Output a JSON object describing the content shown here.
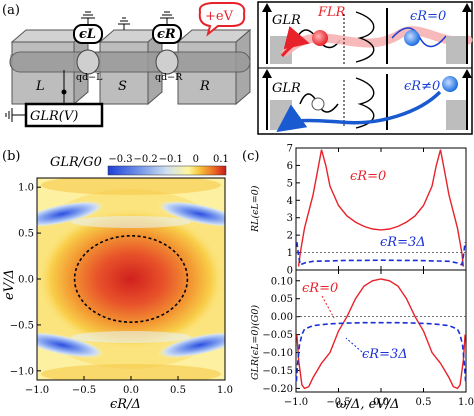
{
  "panel_labels": {
    "a": "(a)",
    "b": "(b)",
    "c": "(c)"
  },
  "panel_a": {
    "leads": [
      "L",
      "S",
      "R"
    ],
    "dots": {
      "left_energy": "ϵL",
      "right_energy": "ϵR",
      "left_label": "qd−L",
      "right_label": "qd−R"
    },
    "bias": "+eV",
    "meter": "GLR(V)",
    "cartoon_top": {
      "label": "GLR",
      "force": "FLR",
      "condition": "ϵR=0"
    },
    "cartoon_bottom": {
      "label": "GLR",
      "condition": "ϵR≠0"
    }
  },
  "chart_data": [
    {
      "type": "heatmap",
      "title": "GLR/G0",
      "colorbar_ticks": [
        "−0.3",
        "−0.2",
        "−0.1",
        "0",
        "0.1"
      ],
      "colorbar_range": [
        -0.35,
        0.12
      ],
      "xlabel": "ϵR/Δ",
      "ylabel": "eV/Δ",
      "xlim": [
        -1.0,
        1.0
      ],
      "ylim": [
        -1.1,
        1.1
      ],
      "xticks": [
        "−1.0",
        "−0.5",
        "0.0",
        "0.5",
        "1.0"
      ],
      "yticks": [
        "−1.0",
        "−0.5",
        "0.0",
        "0.5",
        "1.0"
      ],
      "contour": "dashed ellipse, GLR = 0",
      "contour_semi_axes": [
        0.6,
        0.47
      ]
    },
    {
      "type": "line",
      "ylabel": "RL(ϵL=0)",
      "xlim": [
        -1.0,
        1.0
      ],
      "ylim": [
        0,
        7
      ],
      "yticks": [
        "0",
        "1",
        "2",
        "3",
        "4",
        "5",
        "6",
        "7"
      ],
      "series": [
        {
          "name": "ϵR=0",
          "color": "#e8222a",
          "style": "solid",
          "x": [
            -0.97,
            -0.95,
            -0.9,
            -0.8,
            -0.75,
            -0.7,
            -0.65,
            -0.6,
            -0.5,
            -0.4,
            -0.3,
            -0.2,
            -0.1,
            0.0,
            0.1,
            0.2,
            0.3,
            0.4,
            0.5,
            0.6,
            0.65,
            0.7,
            0.75,
            0.8,
            0.9,
            0.95,
            0.97
          ],
          "y": [
            0.2,
            1.0,
            2.4,
            4.3,
            5.6,
            6.9,
            6.0,
            4.8,
            3.7,
            3.1,
            2.75,
            2.5,
            2.35,
            2.3,
            2.35,
            2.5,
            2.75,
            3.1,
            3.7,
            4.8,
            6.0,
            6.9,
            5.6,
            4.3,
            2.4,
            1.0,
            0.2
          ]
        },
        {
          "name": "ϵR=3Δ",
          "color": "#1a2fd6",
          "style": "dashed",
          "x": [
            -0.99,
            -0.97,
            -0.95,
            -0.9,
            -0.8,
            -0.6,
            -0.4,
            -0.2,
            0.0,
            0.2,
            0.4,
            0.6,
            0.8,
            0.9,
            0.95,
            0.97,
            0.99
          ],
          "y": [
            1.6,
            0.8,
            0.3,
            0.4,
            0.5,
            0.52,
            0.55,
            0.55,
            0.56,
            0.55,
            0.55,
            0.52,
            0.5,
            0.4,
            0.3,
            0.8,
            1.6
          ]
        },
        {
          "name": "reference",
          "color": "#444444",
          "style": "thin",
          "x": [
            -1.0,
            1.0
          ],
          "y": [
            1.0,
            1.0
          ]
        }
      ]
    },
    {
      "type": "line",
      "ylabel": "GLR(ϵL=0)(G0)",
      "xlabel": "ω/Δ, eV/Δ",
      "xlim": [
        -1.0,
        1.0
      ],
      "ylim": [
        -0.21,
        0.13
      ],
      "xticks": [
        "−1.0",
        "−0.5",
        "0.0",
        "0.5",
        "1.0"
      ],
      "yticks": [
        "−0.20",
        "−0.15",
        "−0.10",
        "−0.05",
        "0.00",
        "0.05",
        "0.10"
      ],
      "series": [
        {
          "name": "ϵR=0",
          "color": "#e8222a",
          "style": "solid",
          "x": [
            -0.99,
            -0.97,
            -0.93,
            -0.9,
            -0.85,
            -0.8,
            -0.75,
            -0.7,
            -0.6,
            -0.5,
            -0.4,
            -0.3,
            -0.2,
            -0.1,
            0.0,
            0.1,
            0.2,
            0.3,
            0.4,
            0.5,
            0.6,
            0.7,
            0.75,
            0.8,
            0.85,
            0.9,
            0.93,
            0.97,
            0.99
          ],
          "y": [
            -0.05,
            -0.12,
            -0.19,
            -0.2,
            -0.195,
            -0.17,
            -0.15,
            -0.13,
            -0.1,
            -0.04,
            0.0,
            0.05,
            0.085,
            0.1,
            0.105,
            0.1,
            0.085,
            0.05,
            0.0,
            -0.04,
            -0.1,
            -0.13,
            -0.15,
            -0.17,
            -0.195,
            -0.2,
            -0.19,
            -0.12,
            -0.05
          ]
        },
        {
          "name": "ϵR=3Δ",
          "color": "#1a2fd6",
          "style": "dashed",
          "x": [
            -0.995,
            -0.98,
            -0.96,
            -0.93,
            -0.9,
            -0.8,
            -0.6,
            -0.4,
            -0.2,
            0.0,
            0.2,
            0.4,
            0.6,
            0.8,
            0.9,
            0.93,
            0.96,
            0.98,
            0.995
          ],
          "y": [
            -0.18,
            -0.13,
            -0.08,
            -0.05,
            -0.035,
            -0.025,
            -0.02,
            -0.018,
            -0.017,
            -0.017,
            -0.017,
            -0.018,
            -0.02,
            -0.025,
            -0.035,
            -0.05,
            -0.08,
            -0.13,
            -0.18
          ]
        },
        {
          "name": "reference",
          "color": "#444444",
          "style": "thin",
          "x": [
            -1.0,
            1.0
          ],
          "y": [
            0.0,
            0.0
          ]
        }
      ]
    }
  ]
}
